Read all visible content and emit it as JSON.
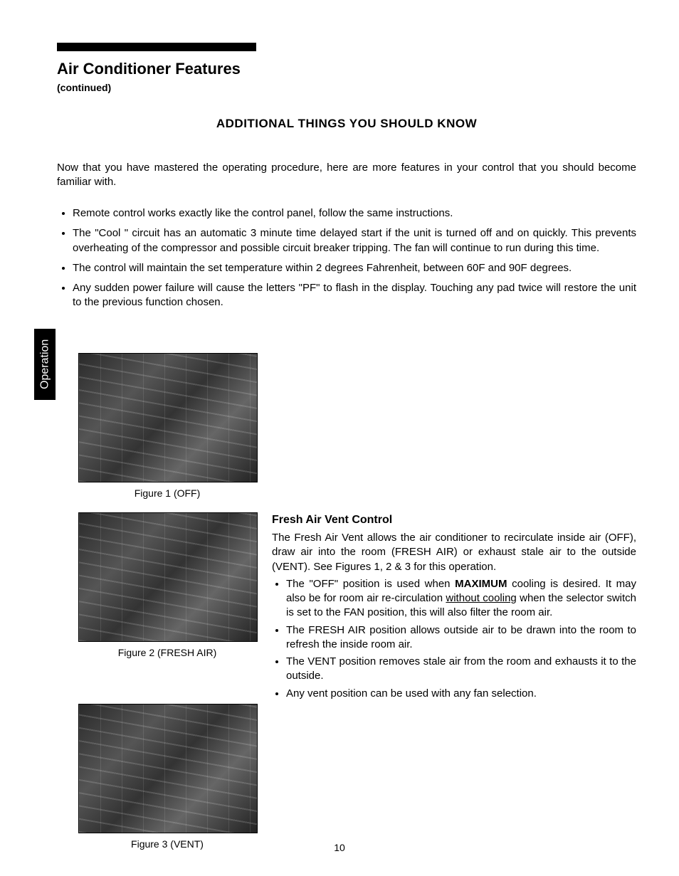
{
  "header": {
    "title": "Air Conditioner Features",
    "continued": "(continued)"
  },
  "subheading": "ADDITIONAL THINGS YOU SHOULD KNOW",
  "intro": "Now that you have mastered the operating procedure, here are more features in your control that you should become familiar with.",
  "top_bullets": [
    "Remote control works exactly like the control panel, follow the same instructions.",
    "The \"Cool \" circuit has an automatic 3 minute time delayed start if the unit is turned off and on quickly. This prevents overheating of the compressor and possible circuit breaker tripping. The fan will continue to run during this time.",
    "The control will maintain the set temperature within 2 degrees Fahrenheit, between 60F and 90F degrees.",
    "Any sudden power failure will cause the letters \"PF\" to flash in the display. Touching any pad twice will restore the unit to the previous function chosen."
  ],
  "tab_label": "Operation",
  "figures": {
    "fig1_caption": "Figure 1 (OFF)",
    "fig2_caption": "Figure 2 (FRESH AIR)",
    "fig3_caption": "Figure 3 (VENT)"
  },
  "fresh_air": {
    "heading": "Fresh Air Vent Control",
    "para": "The Fresh Air Vent allows the air conditioner to recirculate inside air (OFF), draw air into the room (FRESH AIR) or exhaust stale air to the outside (VENT). See Figures 1, 2 & 3 for this operation.",
    "bullet1_pre": "The \"OFF\" position is used when ",
    "bullet1_strong": "MAXIMUM",
    "bullet1_mid": " cooling is desired. It may also be for room air re-circulation ",
    "bullet1_ul": "without cooling",
    "bullet1_post": " when the selector switch is set to the FAN position, this will also filter the room air.",
    "bullet2": "The FRESH AIR position allows outside air to be drawn into the room to refresh the inside room air.",
    "bullet3": "The VENT position removes stale air from the room and exhausts it to the outside.",
    "bullet4": "Any vent position can be used with any fan selection."
  },
  "page_number": "10",
  "colors": {
    "text": "#000000",
    "background": "#ffffff",
    "tab_bg": "#000000",
    "tab_text": "#ffffff"
  }
}
